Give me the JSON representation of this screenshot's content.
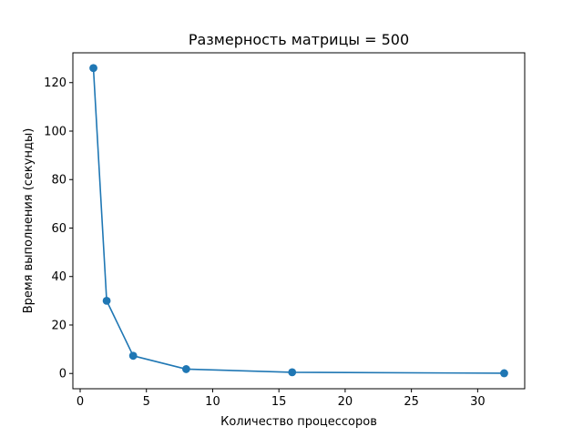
{
  "chart_data": {
    "type": "line",
    "title": "Размерность матрицы = 500",
    "xlabel": "Количество процессоров",
    "ylabel": "Время выполнения (секунды)",
    "xlim": [
      -0.55,
      33.55
    ],
    "ylim": [
      -6.3,
      132.3
    ],
    "xticks": [
      0,
      5,
      10,
      15,
      20,
      25,
      30
    ],
    "yticks": [
      0,
      20,
      40,
      60,
      80,
      100,
      120
    ],
    "grid": false,
    "series": [
      {
        "color": "#1f77b4",
        "marker": "circle",
        "x": [
          1,
          2,
          4,
          8,
          16,
          32
        ],
        "y": [
          126.0,
          30.0,
          7.3,
          1.8,
          0.5,
          0.1
        ]
      }
    ]
  }
}
